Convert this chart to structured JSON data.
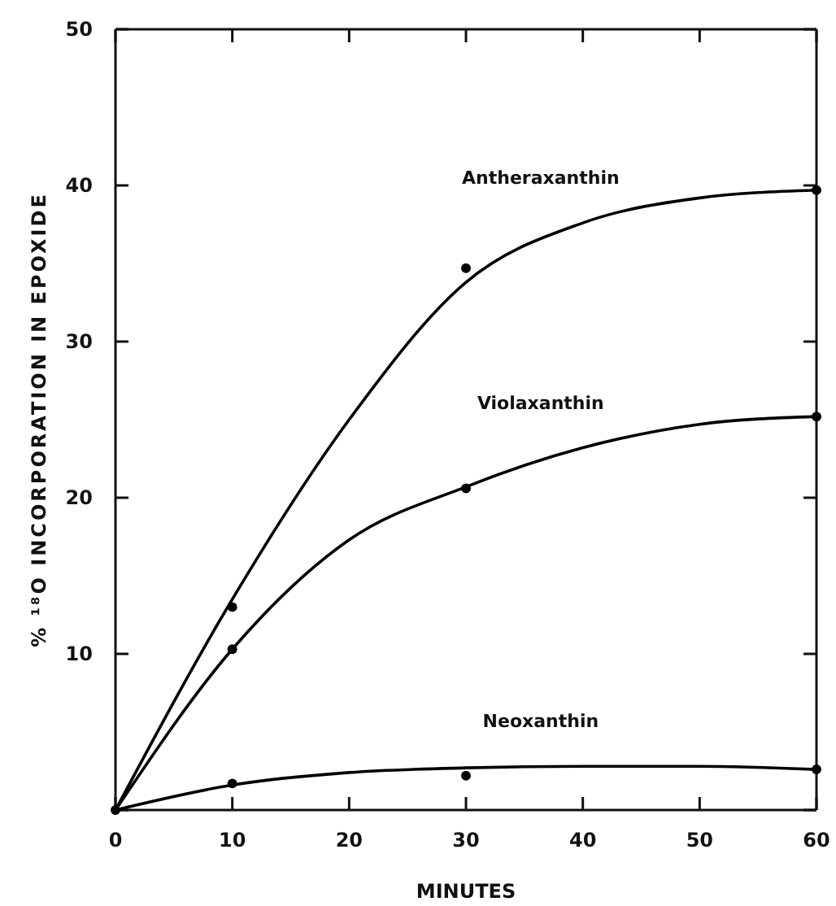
{
  "chart_data": {
    "type": "line",
    "xlabel": "MINUTES",
    "ylabel": "% ¹⁸O INCORPORATION IN EPOXIDE",
    "xlim": [
      0,
      60
    ],
    "xticks": [
      0,
      10,
      20,
      30,
      40,
      50,
      60
    ],
    "ylim": [
      0,
      50
    ],
    "yticks": [
      {
        "value": 0,
        "label": null
      },
      10,
      20,
      30,
      40,
      50
    ],
    "grid": false,
    "line_style": "solid",
    "series": [
      {
        "name": "Antheraxanthin",
        "color": "#000000",
        "x": [
          0,
          10,
          20,
          30,
          40,
          50,
          60
        ],
        "values": [
          0,
          13.5,
          25,
          33.8,
          37.6,
          39.2,
          39.7
        ]
      },
      {
        "name": "Violaxanthin",
        "color": "#000000",
        "x": [
          0,
          10,
          20,
          30,
          40,
          50,
          60
        ],
        "values": [
          0,
          10.3,
          17.3,
          20.7,
          23.2,
          24.7,
          25.2
        ]
      },
      {
        "name": "Neoxanthin",
        "color": "#000000",
        "x": [
          0,
          10,
          20,
          30,
          40,
          50,
          60
        ],
        "values": [
          0,
          1.6,
          2.4,
          2.7,
          2.8,
          2.8,
          2.6
        ]
      },
      {
        "type": "scatter",
        "marker": "circle",
        "color": "#000000",
        "x": [
          0,
          10,
          30,
          60
        ],
        "values": [
          0,
          13,
          34.7,
          39.7
        ]
      },
      {
        "type": "scatter",
        "marker": "circle",
        "color": "#000000",
        "x": [
          10,
          30,
          60
        ],
        "values": [
          10.3,
          20.6,
          25.2
        ]
      },
      {
        "type": "scatter",
        "marker": "circle",
        "color": "#000000",
        "x": [
          10,
          30,
          60
        ],
        "values": [
          1.7,
          2.2,
          2.6
        ]
      }
    ]
  }
}
